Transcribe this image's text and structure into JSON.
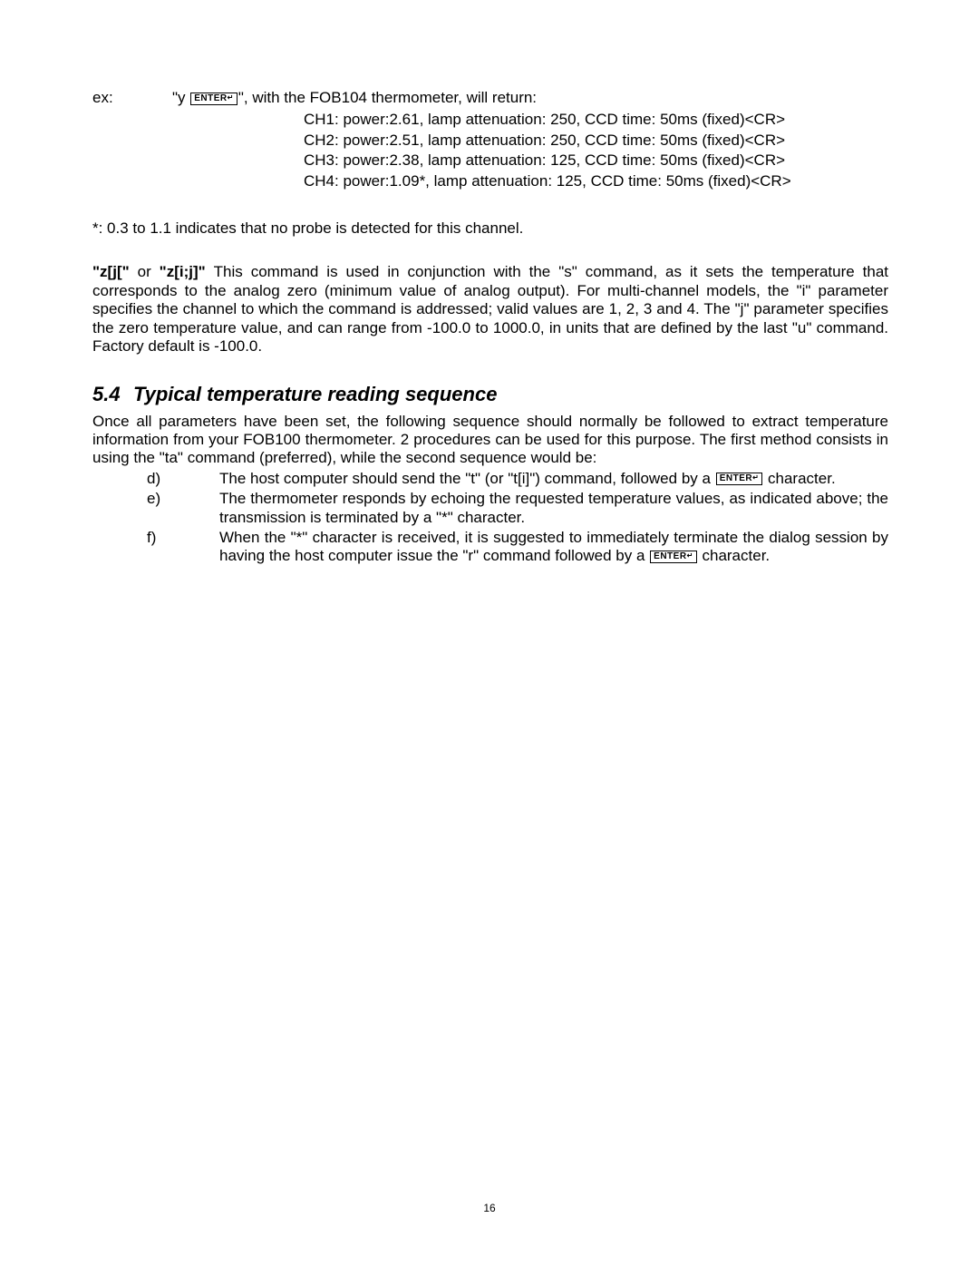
{
  "ex": {
    "label": "ex:",
    "prefix": "\"y ",
    "suffix": "\", with the FOB104 thermometer, will return:"
  },
  "channels": [
    "CH1: power:2.61, lamp attenuation: 250, CCD time: 50ms (fixed)<CR>",
    "CH2: power:2.51, lamp attenuation: 250, CCD time: 50ms (fixed)<CR>",
    "CH3: power:2.38, lamp attenuation: 125, CCD time: 50ms (fixed)<CR>",
    "CH4: power:1.09*, lamp attenuation: 125, CCD time: 50ms (fixed)<CR>"
  ],
  "note": "*: 0.3 to 1.1 indicates that no probe is detected for this channel.",
  "z_cmd": {
    "bold": " \"z[j[\" ",
    "mid": "or ",
    "bold2": "\"z[i;j]\" ",
    "rest": "This command is used in conjunction with the \"s\" command, as it sets the temperature that corresponds to the analog zero (minimum value of analog output). For multi-channel models, the \"i\" parameter specifies the channel to which the command is addressed; valid values are 1, 2, 3 and 4. The \"j\" parameter specifies the zero temperature value, and can range from -100.0 to 1000.0, in units that are defined by the last \"u\" command. Factory default is -100.0."
  },
  "heading": {
    "num": "5.4",
    "title": "Typical temperature reading sequence"
  },
  "para_once": "Once all parameters have been set, the following sequence should normally be followed to extract temperature information from your FOB100 thermometer. 2 procedures can be used for this purpose. The first method consists in using the \"ta\" command (preferred), while the second sequence would be:",
  "items": {
    "d": {
      "letter": "d)",
      "before": "The host computer should send the \"t\" (or \"t[i]\") command, followed by a ",
      "after": " character."
    },
    "e": {
      "letter": "e)",
      "text": "The thermometer responds by echoing the requested temperature values, as indicated above; the transmission is terminated by a \"*\" character."
    },
    "f": {
      "letter": "f)",
      "before": "When the \"*\" character is received, it is suggested to immediately terminate the dialog session by having the host computer issue the \"r\" command followed by a ",
      "after": " character."
    }
  },
  "page_number": "16",
  "enter_label": "ENTER"
}
